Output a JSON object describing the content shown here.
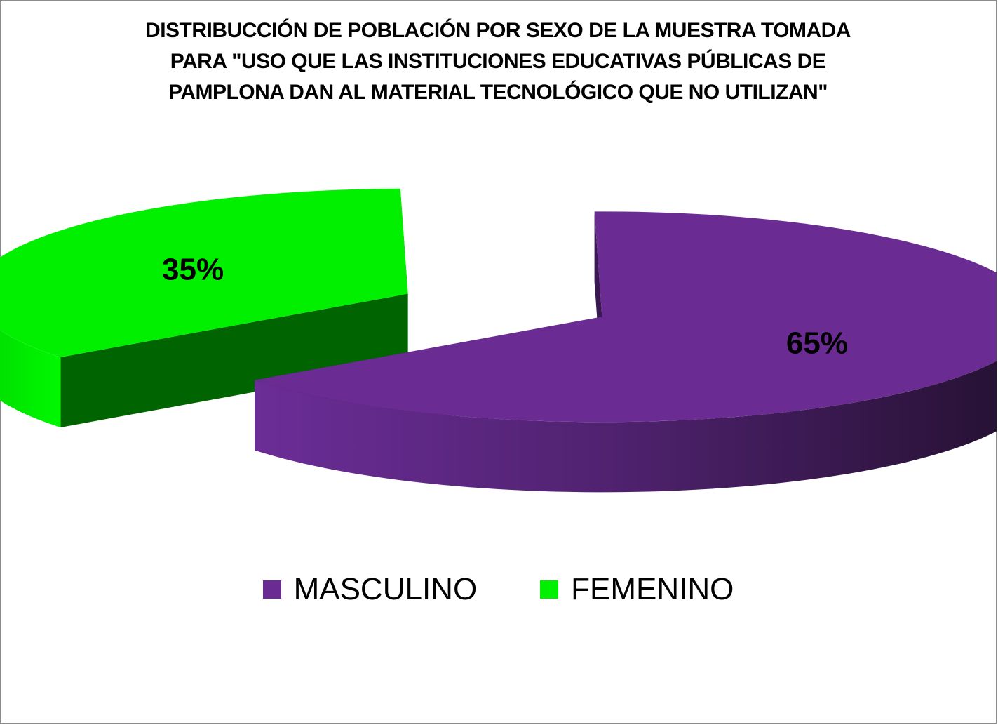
{
  "chart_data": {
    "type": "pie",
    "title": "DISTRIBUCCIÓN DE POBLACIÓN POR SEXO  DE LA MUESTRA TOMADA PARA \"USO QUE LAS INSTITUCIONES EDUCATIVAS PÚBLICAS DE PAMPLONA DAN AL MATERIAL TECNOLÓGICO QUE NO UTILIZAN\"",
    "title_lines": [
      "DISTRIBUCCIÓN DE POBLACIÓN POR SEXO  DE LA MUESTRA TOMADA",
      "PARA \"USO QUE LAS INSTITUCIONES EDUCATIVAS PÚBLICAS DE",
      "PAMPLONA DAN AL MATERIAL TECNOLÓGICO QUE NO UTILIZAN\""
    ],
    "categories": [
      "MASCULINO",
      "FEMENINO"
    ],
    "values": [
      65,
      35
    ],
    "data_labels": [
      "65%",
      "35%"
    ],
    "colors": [
      "#6a2c93",
      "#00f000"
    ],
    "three_d": true,
    "exploded": true,
    "legend_position": "bottom"
  }
}
